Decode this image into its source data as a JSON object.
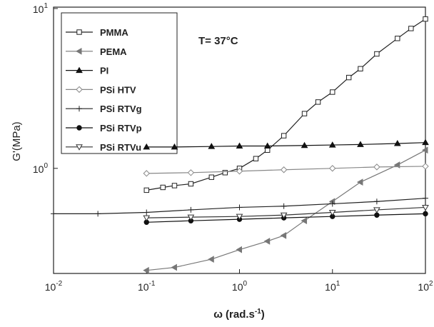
{
  "chart_data": {
    "type": "line",
    "ylabel": "G'(MPa)",
    "xlabel": {
      "text": "ω (rad.s",
      "exponent": "-1",
      "tail": ")"
    },
    "annotation": "T= 37°C",
    "xlog": true,
    "ylog": true,
    "xlim": [
      0.01,
      100
    ],
    "ylim": [
      0.22,
      10.2
    ],
    "xticks": [
      {
        "value": 0.01,
        "label": "10",
        "exponent": "-2"
      },
      {
        "value": 0.1,
        "label": "10",
        "exponent": "-1"
      },
      {
        "value": 1,
        "label": "10",
        "exponent": "0"
      },
      {
        "value": 10,
        "label": "10",
        "exponent": "1"
      },
      {
        "value": 100,
        "label": "10",
        "exponent": "2"
      }
    ],
    "yticks": [
      {
        "value": 1,
        "label": "10",
        "exponent": "0"
      },
      {
        "value": 10,
        "label": "10",
        "exponent": "1"
      }
    ],
    "legend": "upper-left",
    "series": [
      {
        "name": "PMMA",
        "color": "#222222",
        "marker": "square-open",
        "x": [
          0.1,
          0.15,
          0.2,
          0.3,
          0.5,
          0.7,
          1,
          1.5,
          2,
          3,
          5,
          7,
          10,
          15,
          20,
          30,
          50,
          70,
          100
        ],
        "values": [
          0.73,
          0.76,
          0.78,
          0.8,
          0.88,
          0.94,
          1.0,
          1.15,
          1.3,
          1.6,
          2.2,
          2.6,
          3.0,
          3.7,
          4.2,
          5.2,
          6.5,
          7.5,
          8.6
        ]
      },
      {
        "name": "PEMA",
        "color": "#777777",
        "marker": "triangle-left-filled",
        "x": [
          0.1,
          0.2,
          0.5,
          1,
          2,
          3,
          5,
          10,
          20,
          50,
          100
        ],
        "values": [
          0.23,
          0.24,
          0.27,
          0.31,
          0.35,
          0.38,
          0.47,
          0.62,
          0.82,
          1.05,
          1.3
        ]
      },
      {
        "name": "PI",
        "color": "#111111",
        "marker": "triangle-up-filled",
        "x": [
          0.1,
          0.2,
          0.5,
          1,
          2,
          5,
          10,
          20,
          50,
          100
        ],
        "values": [
          1.36,
          1.36,
          1.37,
          1.38,
          1.38,
          1.39,
          1.4,
          1.41,
          1.43,
          1.45
        ]
      },
      {
        "name": "PSi HTV",
        "color": "#888888",
        "marker": "diamond-open",
        "x": [
          0.1,
          0.3,
          1,
          3,
          10,
          30,
          100
        ],
        "values": [
          0.93,
          0.94,
          0.96,
          0.98,
          1.0,
          1.02,
          1.03
        ]
      },
      {
        "name": "PSi RTVg",
        "color": "#222222",
        "marker": "plus",
        "x": [
          0.01,
          0.03,
          0.1,
          0.3,
          1,
          3,
          10,
          30,
          100
        ],
        "values": [
          0.52,
          0.52,
          0.53,
          0.55,
          0.57,
          0.58,
          0.6,
          0.62,
          0.65
        ]
      },
      {
        "name": "PSi RTVp",
        "color": "#111111",
        "marker": "circle-filled",
        "x": [
          0.1,
          0.3,
          1,
          3,
          10,
          30,
          100
        ],
        "values": [
          0.46,
          0.47,
          0.48,
          0.49,
          0.5,
          0.51,
          0.52
        ]
      },
      {
        "name": "PSi RTVu",
        "color": "#333333",
        "marker": "triangle-down-open",
        "x": [
          0.1,
          0.3,
          1,
          3,
          10,
          30,
          100
        ],
        "values": [
          0.49,
          0.495,
          0.5,
          0.51,
          0.53,
          0.55,
          0.57
        ]
      }
    ]
  }
}
